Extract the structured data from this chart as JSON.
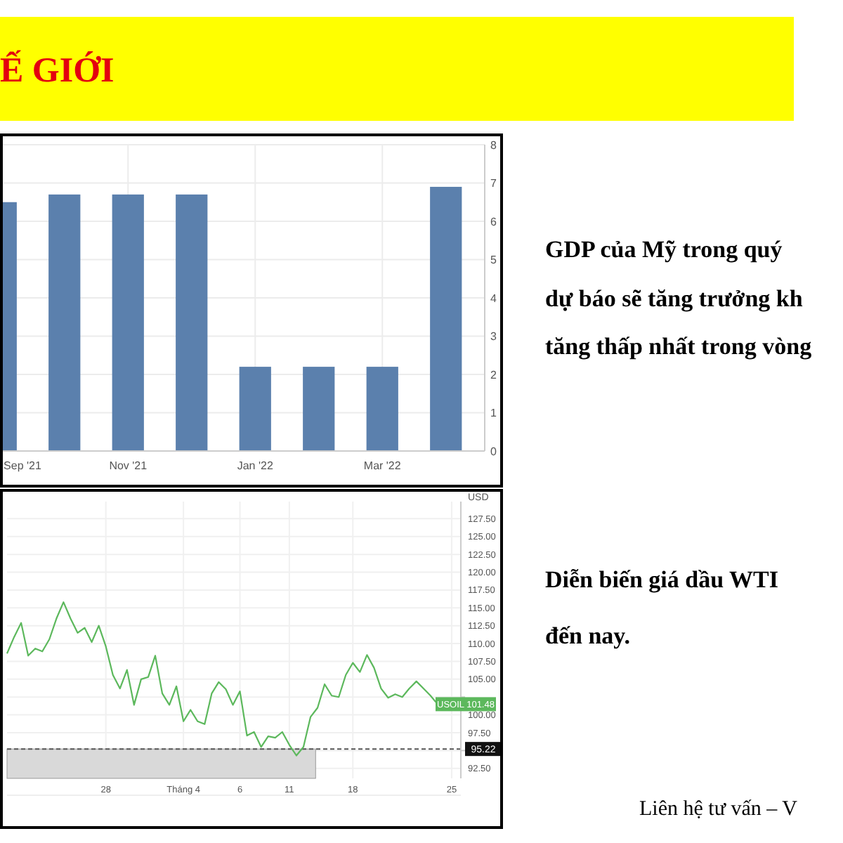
{
  "chart_data": [
    {
      "type": "other",
      "title": "Ế GIỚI",
      "annotations": [
        "GDP của Mỹ trong quý",
        "dự báo sẽ tăng trưởng kh",
        "tăng thấp nhất trong vòng",
        "Diễn biến giá dầu WTI",
        "đến nay.",
        "Liên hệ tư vấn – V"
      ]
    },
    {
      "type": "bar",
      "categories": [
        "Sep '21",
        null,
        "Nov '21",
        null,
        "Jan '22",
        null,
        "Mar '22",
        null
      ],
      "values": [
        6.5,
        6.7,
        6.7,
        6.7,
        2.2,
        2.2,
        2.2,
        6.9
      ],
      "color": "#5b80ad",
      "ylim": [
        0,
        8
      ],
      "yticks": [
        0,
        1,
        2,
        3,
        4,
        5,
        6,
        7,
        8
      ],
      "grid": true
    },
    {
      "type": "line",
      "ylabel": "USD",
      "categories": [
        null,
        null,
        null,
        null,
        null,
        null,
        null,
        null,
        null,
        null,
        null,
        null,
        null,
        null,
        "28",
        null,
        null,
        null,
        null,
        null,
        null,
        null,
        null,
        null,
        null,
        "Tháng 4",
        null,
        null,
        null,
        null,
        null,
        null,
        null,
        "6",
        null,
        null,
        null,
        null,
        null,
        null,
        "11",
        null,
        null,
        null,
        null,
        null,
        null,
        null,
        null,
        "18",
        null,
        null,
        null,
        null,
        null,
        null,
        null,
        null,
        null,
        null,
        null,
        null,
        null,
        "25"
      ],
      "series": [
        {
          "color": "#5cb85c",
          "values": [
            108.6,
            110.9,
            112.9,
            108.3,
            109.3,
            108.9,
            110.6,
            113.5,
            115.8,
            113.5,
            111.5,
            112.2,
            110.2,
            112.5,
            109.6,
            105.6,
            103.7,
            106.3,
            101.4,
            105.0,
            105.3,
            108.3,
            103.0,
            101.4,
            104.0,
            99.1,
            100.7,
            99.1,
            98.7,
            103.0,
            104.6,
            103.6,
            101.4,
            103.3,
            97.1,
            97.6,
            95.5,
            97.0,
            96.8,
            97.6,
            95.8,
            94.3,
            95.5,
            99.7,
            101.0,
            104.3,
            102.7,
            102.5,
            105.6,
            107.3,
            106.0,
            108.4,
            106.6,
            103.7,
            102.4,
            102.9,
            102.5,
            103.7,
            104.7,
            103.7,
            102.7,
            101.5,
            null,
            null
          ]
        }
      ],
      "ylim": [
        91.1,
        129.9
      ],
      "yticks": [
        {
          "value": 92.5,
          "label": "92.50"
        },
        {
          "value": 95,
          "label": null
        },
        {
          "value": 97.5,
          "label": "97.50"
        },
        {
          "value": 100,
          "label": "100.00"
        },
        {
          "value": 102.5,
          "label": null
        },
        {
          "value": 105,
          "label": "105.00"
        },
        {
          "value": 107.5,
          "label": "107.50"
        },
        {
          "value": 110,
          "label": "110.00"
        },
        {
          "value": 112.5,
          "label": "112.50"
        },
        {
          "value": 115,
          "label": "115.00"
        },
        {
          "value": 117.5,
          "label": "117.50"
        },
        {
          "value": 120,
          "label": "120.00"
        },
        {
          "value": 122.5,
          "label": "122.50"
        },
        {
          "value": 125,
          "label": "125.00"
        },
        {
          "value": 127.5,
          "label": "127.50"
        }
      ],
      "grid": true,
      "ref_lines": [
        {
          "axis": "y",
          "value": 95.22,
          "label": "95.22",
          "color": "#555555",
          "line_style": "dashed"
        }
      ],
      "bands": [
        {
          "axis": "y",
          "from": 91.1,
          "to": 95.22,
          "color": "#d9d9d9"
        }
      ],
      "annotations": [
        "USOIL 101.48"
      ]
    }
  ]
}
